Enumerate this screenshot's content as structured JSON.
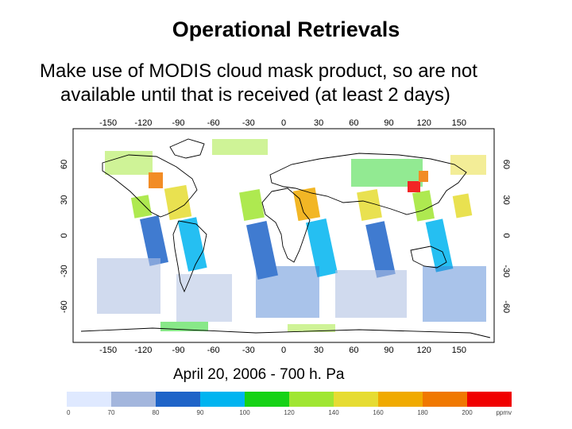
{
  "slide": {
    "title": "Operational Retrievals",
    "body_line1": "Make use of MODIS cloud mask product, so are not",
    "body_line2": "available until that is received (at least 2 days)",
    "caption": "April 20, 2006 - 700 h. Pa"
  },
  "map": {
    "lon_ticks": [
      "-150",
      "-120",
      "-90",
      "-60",
      "-30",
      "0",
      "30",
      "60",
      "90",
      "120",
      "150"
    ],
    "lat_ticks": [
      "60",
      "30",
      "0",
      "-30",
      "-60"
    ],
    "projection": "equirectangular",
    "background": "#ffffff"
  },
  "legend": {
    "colors": [
      "#dfe9ff",
      "#a3b6dd",
      "#1f64c8",
      "#00b4f0",
      "#16d216",
      "#a0e632",
      "#e6dc32",
      "#f0aa00",
      "#f07800",
      "#f00000"
    ],
    "ticks": [
      "0",
      "70",
      "80",
      "90",
      "100",
      "120",
      "140",
      "160",
      "180",
      "200",
      "ppmv"
    ]
  }
}
